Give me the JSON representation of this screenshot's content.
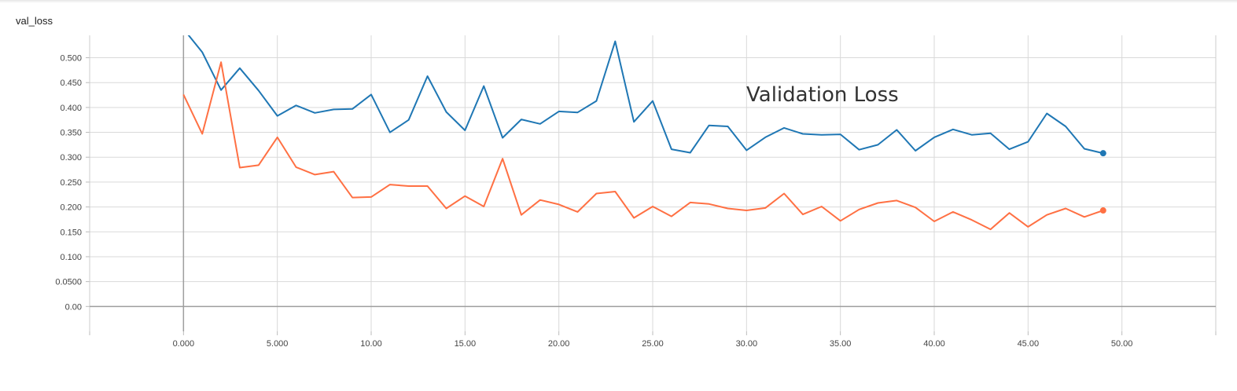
{
  "chart_data": {
    "type": "line",
    "title": "val_loss",
    "annotation": "Validation Loss",
    "xlim": [
      -5,
      55
    ],
    "ylim": [
      -0.05,
      0.545
    ],
    "x_ticks": [
      0,
      5,
      10,
      15,
      20,
      25,
      30,
      35,
      40,
      45,
      50
    ],
    "x_tick_labels": [
      "0.000",
      "5.000",
      "10.00",
      "15.00",
      "20.00",
      "25.00",
      "30.00",
      "35.00",
      "40.00",
      "45.00",
      "50.00"
    ],
    "y_ticks": [
      0,
      0.05,
      0.1,
      0.15,
      0.2,
      0.25,
      0.3,
      0.35,
      0.4,
      0.45,
      0.5
    ],
    "y_tick_labels": [
      "0.00",
      "0.0500",
      "0.100",
      "0.150",
      "0.200",
      "0.250",
      "0.300",
      "0.350",
      "0.400",
      "0.450",
      "0.500"
    ],
    "grid": true,
    "series": [
      {
        "color": "#1f77b4",
        "x": [
          0,
          1,
          2,
          3,
          4,
          5,
          6,
          7,
          8,
          9,
          10,
          11,
          12,
          13,
          14,
          15,
          16,
          17,
          18,
          19,
          20,
          21,
          22,
          23,
          24,
          25,
          26,
          27,
          28,
          29,
          30,
          31,
          32,
          33,
          34,
          35,
          36,
          37,
          38,
          39,
          40,
          41,
          42,
          43,
          44,
          45,
          46,
          47,
          48,
          49
        ],
        "values": [
          0.558,
          0.511,
          0.435,
          0.479,
          0.434,
          0.383,
          0.404,
          0.389,
          0.396,
          0.397,
          0.426,
          0.35,
          0.375,
          0.463,
          0.391,
          0.354,
          0.443,
          0.339,
          0.376,
          0.367,
          0.392,
          0.39,
          0.413,
          0.533,
          0.371,
          0.413,
          0.316,
          0.309,
          0.364,
          0.362,
          0.314,
          0.34,
          0.359,
          0.347,
          0.345,
          0.346,
          0.315,
          0.325,
          0.355,
          0.313,
          0.34,
          0.356,
          0.345,
          0.348,
          0.316,
          0.331,
          0.388,
          0.362,
          0.317,
          0.308
        ]
      },
      {
        "color": "#ff7043",
        "x": [
          0,
          1,
          2,
          3,
          4,
          5,
          6,
          7,
          8,
          9,
          10,
          11,
          12,
          13,
          14,
          15,
          16,
          17,
          18,
          19,
          20,
          21,
          22,
          23,
          24,
          25,
          26,
          27,
          28,
          29,
          30,
          31,
          32,
          33,
          34,
          35,
          36,
          37,
          38,
          39,
          40,
          41,
          42,
          43,
          44,
          45,
          46,
          47,
          48,
          49
        ],
        "values": [
          0.426,
          0.347,
          0.491,
          0.279,
          0.284,
          0.34,
          0.28,
          0.265,
          0.271,
          0.219,
          0.22,
          0.245,
          0.242,
          0.242,
          0.197,
          0.222,
          0.201,
          0.297,
          0.184,
          0.214,
          0.205,
          0.19,
          0.227,
          0.231,
          0.178,
          0.201,
          0.181,
          0.209,
          0.206,
          0.197,
          0.193,
          0.198,
          0.227,
          0.185,
          0.201,
          0.172,
          0.195,
          0.208,
          0.213,
          0.199,
          0.171,
          0.19,
          0.174,
          0.155,
          0.188,
          0.16,
          0.184,
          0.197,
          0.18,
          0.193
        ]
      }
    ]
  }
}
